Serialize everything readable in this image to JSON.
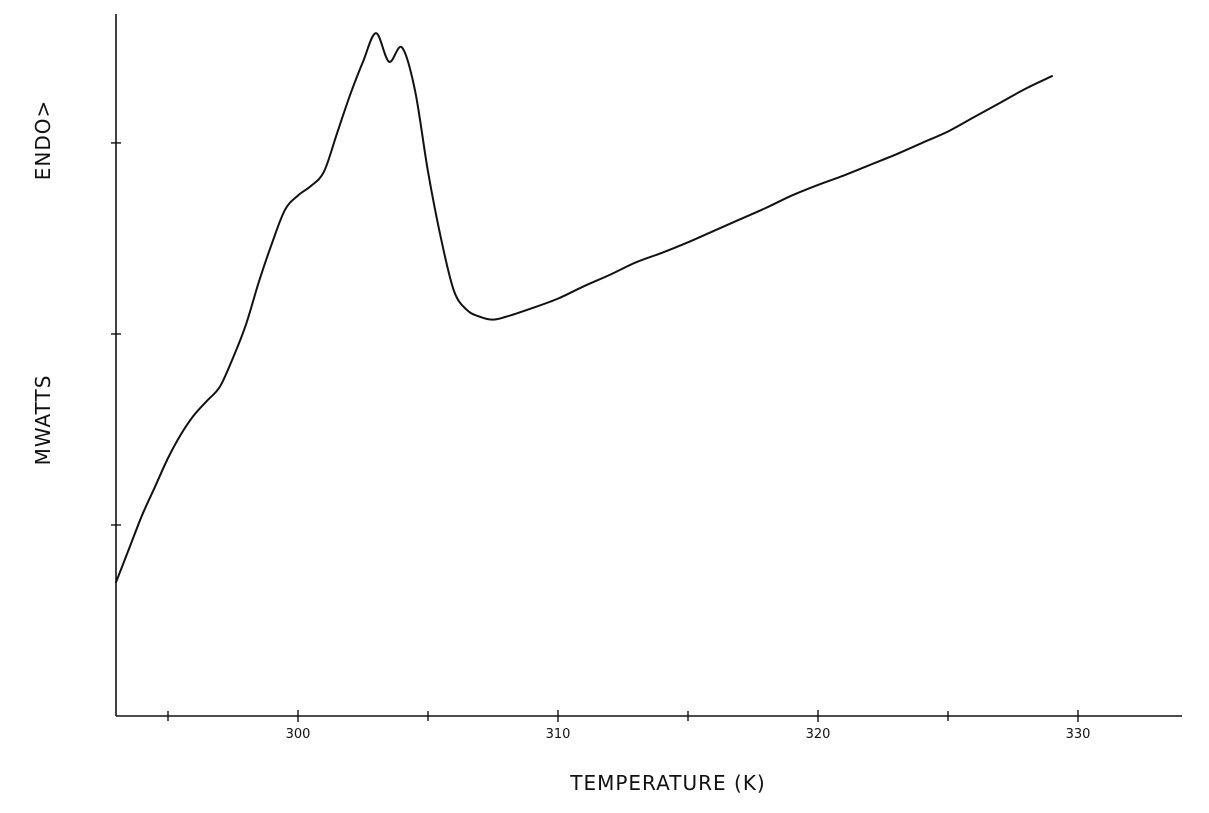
{
  "chart_data": {
    "type": "line",
    "title": "",
    "xlabel": "TEMPERATURE (K)",
    "ylabel": "MWATTS",
    "ylabel_annotation": "ENDO>",
    "xlim": [
      293,
      334
    ],
    "ylim": [
      0,
      7.35
    ],
    "x_major_ticks": [
      300,
      310,
      320,
      330
    ],
    "x_minor_ticks": [
      295,
      305,
      315,
      325
    ],
    "y_ticks": [
      2,
      4,
      6
    ],
    "y_tick_labels": false,
    "grid": false,
    "legend": "none",
    "series": [
      {
        "x": [
          293.0,
          293.5,
          294.0,
          294.5,
          295.0,
          295.5,
          296.0,
          296.5,
          297.0,
          297.5,
          298.0,
          298.5,
          299.0,
          299.5,
          300.0,
          300.5,
          301.0,
          301.5,
          302.0,
          302.5,
          303.0,
          303.5,
          304.0,
          304.5,
          305.0,
          305.5,
          306.0,
          306.5,
          307.0,
          307.5,
          308.0,
          309.0,
          310.0,
          311.0,
          312.0,
          313.0,
          314.0,
          315.0,
          316.0,
          317.0,
          318.0,
          319.0,
          320.0,
          321.0,
          322.0,
          323.0,
          324.0,
          325.0,
          326.0,
          327.0,
          328.0,
          329.0
        ],
        "y": [
          1.4,
          1.75,
          2.1,
          2.4,
          2.7,
          2.95,
          3.15,
          3.3,
          3.45,
          3.75,
          4.1,
          4.55,
          4.95,
          5.3,
          5.45,
          5.55,
          5.7,
          6.1,
          6.5,
          6.85,
          7.15,
          6.85,
          7.0,
          6.55,
          5.7,
          5.0,
          4.45,
          4.25,
          4.18,
          4.15,
          4.18,
          4.27,
          4.37,
          4.5,
          4.62,
          4.75,
          4.85,
          4.96,
          5.08,
          5.2,
          5.32,
          5.45,
          5.56,
          5.66,
          5.77,
          5.88,
          6.0,
          6.12,
          6.27,
          6.42,
          6.57,
          6.7
        ],
        "color": "#111111"
      }
    ]
  }
}
